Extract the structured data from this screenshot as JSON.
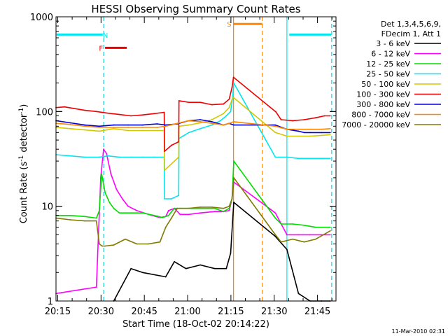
{
  "chart_data": {
    "type": "line",
    "title": "HESSI Observing Summary Count Rates",
    "xlabel": "Start Time (18-Oct-02 20:14:22)",
    "ylabel_main": "Count Rate (s",
    "ylabel_sup1": "-1",
    "ylabel_mid": " detector",
    "ylabel_sup2": "-1",
    "ylabel_end": ")",
    "yscale": "log",
    "ylim": [
      1,
      1000
    ],
    "xlim_minutes": [
      0,
      97
    ],
    "x_tick_labels": [
      "20:15",
      "20:30",
      "20:45",
      "21:00",
      "21:15",
      "21:30",
      "21:45"
    ],
    "x_tick_minutes": [
      0.6,
      15.6,
      30.6,
      45.6,
      60.6,
      75.6,
      90.6
    ],
    "y_tick_labels": [
      "1",
      "10",
      "100",
      "1000"
    ],
    "y_tick_values": [
      1,
      10,
      100,
      1000
    ],
    "stamp": "11-Mar-2010 02:31",
    "legend": {
      "header1": "Det 1,3,4,5,6,9,",
      "header2": "FDecim 1, Att 1",
      "entries": [
        {
          "label": "3 - 6 keV",
          "color": "#000000"
        },
        {
          "label": "6 - 12 keV",
          "color": "#ff00ff"
        },
        {
          "label": "12 - 25 keV",
          "color": "#00dd00"
        },
        {
          "label": "25 - 50 keV",
          "color": "#00e5ee"
        },
        {
          "label": "50 - 100 keV",
          "color": "#d4c800"
        },
        {
          "label": "100 - 300 keV",
          "color": "#ee0000"
        },
        {
          "label": "300 - 800 keV",
          "color": "#0000dd"
        },
        {
          "label": "800 - 7000 keV",
          "color": "#ff8800"
        },
        {
          "label": "7000 - 20000 keV",
          "color": "#807a00"
        }
      ]
    },
    "flags": [
      {
        "label": "N",
        "color": "#00e5ee",
        "x_minutes": [
          15.5,
          16.0
        ]
      },
      {
        "label": "F",
        "color": "#ee0000",
        "x_minutes": [
          17.0,
          24.5
        ]
      },
      {
        "label": "S",
        "color": "#ff8800",
        "x_minutes": [
          61.5,
          71.5
        ]
      }
    ],
    "intervals": [
      {
        "color": "#00e5ee",
        "solid_minute": 0.0,
        "dashed_minute": 16.5
      },
      {
        "color": "#ff8800",
        "solid_minute": 61.5,
        "dashed_minute": 71.5
      },
      {
        "color": "#00e5ee",
        "solid_minute": 80.0,
        "dashed_minute": 95.5
      }
    ],
    "cyan_bars": [
      {
        "x_minutes": [
          0.2,
          16.2
        ]
      },
      {
        "x_minutes": [
          80.8,
          95.3
        ]
      }
    ],
    "gaps_minutes": [
      [
        61.6,
        75.8
      ]
    ],
    "series": [
      {
        "name": "3 - 6 keV",
        "color": "#000000",
        "x": [
          20,
          26,
          30,
          38,
          41,
          45,
          50,
          55,
          59,
          60.5,
          61.3,
          61.6,
          76,
          80,
          84,
          88,
          92,
          95
        ],
        "y": [
          1.0,
          2.2,
          2.0,
          1.8,
          2.6,
          2.2,
          2.4,
          2.2,
          2.2,
          3.2,
          8.0,
          11.0,
          4.8,
          3.5,
          1.2,
          1.0,
          1.0,
          1.0
        ]
      },
      {
        "name": "6 - 12 keV",
        "color": "#ff00ff",
        "x": [
          0,
          14,
          15.5,
          16.5,
          17.5,
          19,
          21,
          23,
          25,
          28,
          32,
          36,
          38,
          39,
          41,
          43,
          46,
          50,
          55,
          58,
          60,
          61,
          61.6,
          76,
          80,
          84,
          88,
          92,
          95
        ],
        "y": [
          1.2,
          1.4,
          20,
          40,
          36,
          22,
          15,
          12,
          10,
          9,
          8.2,
          7.6,
          7.8,
          9.0,
          9.5,
          8.2,
          8.2,
          8.5,
          8.8,
          8.8,
          9.0,
          12,
          18,
          8.5,
          5.0,
          5.0,
          5.0,
          5.0,
          5.0
        ]
      },
      {
        "name": "12 - 25 keV",
        "color": "#00dd00",
        "x": [
          0,
          5,
          10,
          14,
          15,
          15.8,
          17,
          18.5,
          20,
          22,
          26,
          30,
          34,
          37,
          39,
          41,
          43,
          46,
          50,
          55,
          58,
          60,
          61,
          61.6,
          76,
          78,
          82,
          86,
          90,
          95
        ],
        "y": [
          8.0,
          8.0,
          7.8,
          7.5,
          9,
          22,
          14,
          11,
          9.5,
          8.5,
          8.5,
          8.5,
          8.0,
          7.6,
          8.0,
          9.5,
          9.5,
          9.5,
          9.5,
          9.5,
          8.8,
          9.5,
          12,
          30,
          7.5,
          6.5,
          6.5,
          6.3,
          6.0,
          6.0
        ]
      },
      {
        "name": "25 - 50 keV",
        "color": "#00e5ee",
        "x": [
          0,
          5,
          10,
          15,
          18,
          22,
          26,
          30,
          34,
          37.5,
          37.6,
          40,
          42.5,
          42.6,
          46,
          50,
          54,
          57,
          59,
          60.5,
          61.2,
          61.6,
          76,
          76.1,
          80,
          84,
          86,
          88,
          92,
          95
        ],
        "y": [
          35,
          34,
          33,
          33,
          34,
          33,
          33,
          33,
          33,
          33,
          12,
          12,
          13,
          52,
          60,
          66,
          72,
          80,
          90,
          100,
          140,
          200,
          33,
          33,
          33,
          32,
          32,
          32,
          32,
          32
        ]
      },
      {
        "name": "50 - 100 keV",
        "color": "#d4c800",
        "x": [
          0,
          5,
          10,
          15,
          20,
          25,
          30,
          35,
          37.5,
          37.6,
          42.5,
          42.6,
          46,
          50,
          54,
          58,
          60,
          61.2,
          61.6,
          76,
          76.1,
          80,
          84,
          88,
          92,
          95
        ],
        "y": [
          68,
          66,
          64,
          62,
          66,
          63,
          63,
          63,
          63,
          24,
          33,
          70,
          72,
          76,
          82,
          95,
          110,
          140,
          140,
          60,
          60,
          55,
          55,
          55,
          56,
          57
        ]
      },
      {
        "name": "100 - 300 keV",
        "color": "#ee0000",
        "x": [
          0,
          3,
          6,
          10,
          14,
          18,
          22,
          26,
          30,
          34,
          37.5,
          37.6,
          40,
          42.5,
          42.6,
          46,
          50,
          54,
          58,
          60,
          61,
          61.5,
          76,
          76.1,
          78,
          82,
          86,
          90,
          93,
          95
        ],
        "y": [
          110,
          112,
          108,
          103,
          100,
          96,
          93,
          90,
          92,
          95,
          98,
          38,
          44,
          48,
          130,
          125,
          125,
          118,
          120,
          135,
          180,
          230,
          100,
          100,
          82,
          80,
          82,
          86,
          90,
          90
        ]
      },
      {
        "name": "300 - 800 keV",
        "color": "#0000dd",
        "x": [
          0,
          5,
          10,
          15,
          20,
          25,
          30,
          35,
          38,
          42,
          46,
          50,
          54,
          58,
          60,
          61.6,
          76,
          80,
          84,
          86,
          88,
          92,
          95
        ],
        "y": [
          80,
          76,
          72,
          70,
          72,
          72,
          72,
          74,
          72,
          74,
          80,
          82,
          78,
          72,
          75,
          72,
          72,
          65,
          62,
          60,
          60,
          60,
          60
        ]
      },
      {
        "name": "800 - 7000 keV",
        "color": "#ff8800",
        "x": [
          0,
          5,
          10,
          15,
          20,
          25,
          30,
          35,
          38,
          42,
          46,
          50,
          54,
          58,
          60,
          61.6,
          76,
          80,
          84,
          88,
          92,
          95
        ],
        "y": [
          75,
          73,
          70,
          68,
          68,
          68,
          68,
          68,
          70,
          75,
          80,
          78,
          75,
          72,
          75,
          78,
          70,
          65,
          65,
          65,
          65,
          66
        ]
      },
      {
        "name": "7000 - 20000 keV",
        "color": "#807a00",
        "x": [
          0,
          5,
          10,
          14,
          15,
          16,
          17,
          20,
          24,
          28,
          32,
          36,
          38,
          40,
          42,
          46,
          50,
          54,
          58,
          60,
          61,
          61.6,
          76,
          78,
          82,
          86,
          90,
          95
        ],
        "y": [
          7.5,
          7.2,
          7.0,
          7.0,
          4.0,
          3.8,
          3.8,
          3.9,
          4.5,
          4.0,
          4.0,
          4.2,
          6.0,
          7.5,
          9.5,
          9.5,
          9.8,
          9.8,
          9.5,
          10,
          12,
          20,
          5.0,
          4.2,
          4.5,
          4.2,
          4.5,
          5.5
        ]
      }
    ]
  }
}
